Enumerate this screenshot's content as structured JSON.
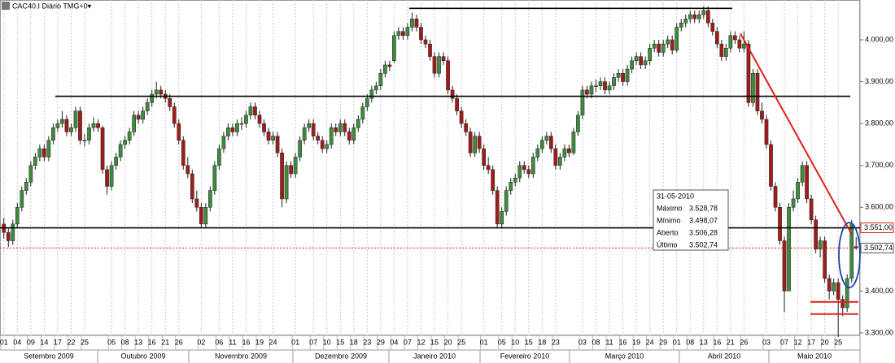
{
  "chart_data": {
    "type": "candlestick",
    "title": "CAC40.I Diário TMG+0▾",
    "up_color": "#3f8a3f",
    "down_color": "#a01c1c",
    "grid": true,
    "ylim": [
      3265,
      4095
    ],
    "yticks": [
      {
        "value": 3300,
        "label": "3.300,00"
      },
      {
        "value": 3400,
        "label": "3.400,00"
      },
      {
        "value": 3500,
        "label": "3.500,00"
      },
      {
        "value": 3600,
        "label": "3.600,00"
      },
      {
        "value": 3700,
        "label": "3.700,00"
      },
      {
        "value": 3800,
        "label": "3.800,00"
      },
      {
        "value": 3900,
        "label": "3.900,00"
      },
      {
        "value": 4000,
        "label": "4.000,00"
      }
    ],
    "months": [
      "Setembro 2009",
      "Outubro 2009",
      "Novembro 2009",
      "Dezembro 2009",
      "Janeiro 2010",
      "Fevereiro 2010",
      "Março 2010",
      "Abril 2010",
      "Maio 2010"
    ],
    "categories": [
      "01",
      null,
      null,
      "04",
      null,
      null,
      "09",
      null,
      null,
      "14",
      null,
      null,
      "17",
      null,
      null,
      "22",
      null,
      null,
      "25",
      null,
      null,
      null,
      null,
      null,
      "05",
      null,
      null,
      "08",
      null,
      null,
      "13",
      null,
      null,
      "16",
      null,
      null,
      "21",
      null,
      null,
      "26",
      null,
      null,
      null,
      null,
      "02",
      null,
      null,
      null,
      "06",
      null,
      null,
      "11",
      null,
      null,
      "16",
      null,
      null,
      "19",
      null,
      null,
      "24",
      null,
      null,
      null,
      null,
      "01",
      null,
      null,
      null,
      "07",
      null,
      null,
      "10",
      null,
      null,
      "15",
      null,
      null,
      "18",
      null,
      null,
      "23",
      null,
      null,
      "29",
      null,
      null,
      "04",
      null,
      null,
      "07",
      null,
      null,
      "12",
      null,
      null,
      "15",
      null,
      null,
      "20",
      null,
      null,
      "25",
      null,
      null,
      null,
      null,
      "01",
      null,
      null,
      null,
      "05",
      null,
      null,
      "10",
      null,
      null,
      "15",
      null,
      null,
      "18",
      null,
      null,
      "23",
      null,
      null,
      null,
      null,
      null,
      "03",
      null,
      null,
      "08",
      null,
      null,
      "11",
      null,
      null,
      "16",
      null,
      null,
      "19",
      null,
      null,
      "24",
      null,
      null,
      "29",
      null,
      null,
      "01",
      null,
      null,
      "08",
      null,
      null,
      "13",
      null,
      null,
      "16",
      null,
      null,
      "21",
      null,
      null,
      "26",
      null,
      null,
      null,
      null,
      "03",
      null,
      null,
      null,
      "07",
      null,
      null,
      "12",
      null,
      null,
      "17",
      null,
      null,
      "20",
      null,
      null,
      "25",
      null,
      null,
      null,
      null
    ],
    "ohlc": [
      [
        3560,
        3575,
        3525,
        3540
      ],
      [
        3540,
        3550,
        3505,
        3520
      ],
      [
        3520,
        3570,
        3510,
        3560
      ],
      [
        3560,
        3610,
        3550,
        3600
      ],
      [
        3600,
        3650,
        3590,
        3640
      ],
      [
        3640,
        3670,
        3630,
        3660
      ],
      [
        3660,
        3710,
        3650,
        3700
      ],
      [
        3700,
        3730,
        3690,
        3720
      ],
      [
        3720,
        3750,
        3710,
        3740
      ],
      [
        3740,
        3750,
        3710,
        3720
      ],
      [
        3720,
        3770,
        3710,
        3760
      ],
      [
        3760,
        3800,
        3750,
        3790
      ],
      [
        3790,
        3810,
        3780,
        3800
      ],
      [
        3800,
        3830,
        3790,
        3810
      ],
      [
        3810,
        3820,
        3770,
        3780
      ],
      [
        3780,
        3800,
        3770,
        3790
      ],
      [
        3790,
        3840,
        3780,
        3830
      ],
      [
        3830,
        3840,
        3750,
        3760
      ],
      [
        3760,
        3775,
        3745,
        3760
      ],
      [
        3760,
        3800,
        3750,
        3790
      ],
      [
        3790,
        3815,
        3780,
        3800
      ],
      [
        3800,
        3810,
        3780,
        3790
      ],
      [
        3790,
        3795,
        3680,
        3690
      ],
      [
        3690,
        3700,
        3630,
        3650
      ],
      [
        3650,
        3710,
        3640,
        3700
      ],
      [
        3700,
        3730,
        3690,
        3720
      ],
      [
        3720,
        3760,
        3710,
        3750
      ],
      [
        3750,
        3770,
        3740,
        3760
      ],
      [
        3760,
        3790,
        3750,
        3780
      ],
      [
        3780,
        3830,
        3770,
        3820
      ],
      [
        3820,
        3830,
        3800,
        3810
      ],
      [
        3810,
        3840,
        3800,
        3830
      ],
      [
        3830,
        3860,
        3820,
        3850
      ],
      [
        3850,
        3880,
        3840,
        3870
      ],
      [
        3870,
        3900,
        3860,
        3880
      ],
      [
        3880,
        3890,
        3860,
        3870
      ],
      [
        3870,
        3880,
        3850,
        3860
      ],
      [
        3860,
        3870,
        3830,
        3840
      ],
      [
        3840,
        3850,
        3790,
        3800
      ],
      [
        3800,
        3810,
        3750,
        3760
      ],
      [
        3760,
        3770,
        3690,
        3700
      ],
      [
        3700,
        3720,
        3670,
        3680
      ],
      [
        3680,
        3690,
        3610,
        3620
      ],
      [
        3620,
        3640,
        3590,
        3600
      ],
      [
        3600,
        3610,
        3550,
        3560
      ],
      [
        3560,
        3610,
        3550,
        3600
      ],
      [
        3600,
        3650,
        3590,
        3640
      ],
      [
        3640,
        3710,
        3630,
        3700
      ],
      [
        3700,
        3750,
        3690,
        3740
      ],
      [
        3740,
        3780,
        3730,
        3770
      ],
      [
        3770,
        3800,
        3760,
        3790
      ],
      [
        3790,
        3800,
        3770,
        3780
      ],
      [
        3780,
        3810,
        3770,
        3800
      ],
      [
        3800,
        3815,
        3785,
        3800
      ],
      [
        3800,
        3830,
        3790,
        3820
      ],
      [
        3820,
        3850,
        3810,
        3840
      ],
      [
        3840,
        3850,
        3810,
        3820
      ],
      [
        3820,
        3830,
        3790,
        3800
      ],
      [
        3800,
        3810,
        3770,
        3780
      ],
      [
        3780,
        3790,
        3750,
        3760
      ],
      [
        3760,
        3780,
        3750,
        3770
      ],
      [
        3770,
        3780,
        3720,
        3730
      ],
      [
        3730,
        3740,
        3600,
        3620
      ],
      [
        3620,
        3710,
        3610,
        3700
      ],
      [
        3700,
        3710,
        3670,
        3680
      ],
      [
        3680,
        3730,
        3670,
        3720
      ],
      [
        3720,
        3770,
        3710,
        3760
      ],
      [
        3760,
        3800,
        3750,
        3790
      ],
      [
        3790,
        3810,
        3780,
        3800
      ],
      [
        3800,
        3810,
        3760,
        3770
      ],
      [
        3770,
        3780,
        3750,
        3760
      ],
      [
        3760,
        3770,
        3730,
        3740
      ],
      [
        3740,
        3760,
        3730,
        3750
      ],
      [
        3750,
        3800,
        3740,
        3790
      ],
      [
        3790,
        3800,
        3770,
        3780
      ],
      [
        3780,
        3810,
        3770,
        3800
      ],
      [
        3800,
        3810,
        3770,
        3780
      ],
      [
        3780,
        3790,
        3750,
        3760
      ],
      [
        3760,
        3800,
        3750,
        3790
      ],
      [
        3790,
        3820,
        3780,
        3810
      ],
      [
        3810,
        3850,
        3800,
        3840
      ],
      [
        3840,
        3870,
        3830,
        3860
      ],
      [
        3860,
        3890,
        3850,
        3880
      ],
      [
        3880,
        3900,
        3870,
        3890
      ],
      [
        3890,
        3930,
        3880,
        3920
      ],
      [
        3920,
        3950,
        3910,
        3940
      ],
      [
        3940,
        3950,
        3925,
        3936
      ],
      [
        3950,
        4020,
        3945,
        4010
      ],
      [
        4010,
        4030,
        4000,
        4020
      ],
      [
        4020,
        4030,
        4000,
        4010
      ],
      [
        4010,
        4040,
        4000,
        4030
      ],
      [
        4030,
        4065,
        4020,
        4050
      ],
      [
        4050,
        4060,
        4020,
        4030
      ],
      [
        4030,
        4040,
        3990,
        4000
      ],
      [
        4000,
        4010,
        3980,
        3990
      ],
      [
        3990,
        4000,
        3950,
        3960
      ],
      [
        3960,
        3970,
        3910,
        3920
      ],
      [
        3920,
        3970,
        3910,
        3960
      ],
      [
        3960,
        3970,
        3940,
        3950
      ],
      [
        3950,
        3960,
        3870,
        3880
      ],
      [
        3880,
        3890,
        3850,
        3860
      ],
      [
        3860,
        3870,
        3820,
        3830
      ],
      [
        3830,
        3840,
        3790,
        3800
      ],
      [
        3800,
        3810,
        3770,
        3780
      ],
      [
        3780,
        3790,
        3720,
        3730
      ],
      [
        3730,
        3780,
        3720,
        3770
      ],
      [
        3770,
        3780,
        3730,
        3740
      ],
      [
        3740,
        3750,
        3690,
        3700
      ],
      [
        3700,
        3720,
        3680,
        3690
      ],
      [
        3690,
        3700,
        3630,
        3640
      ],
      [
        3640,
        3650,
        3550,
        3560
      ],
      [
        3560,
        3600,
        3550,
        3590
      ],
      [
        3590,
        3650,
        3580,
        3640
      ],
      [
        3640,
        3670,
        3630,
        3660
      ],
      [
        3660,
        3680,
        3650,
        3670
      ],
      [
        3670,
        3710,
        3660,
        3700
      ],
      [
        3700,
        3710,
        3680,
        3690
      ],
      [
        3690,
        3700,
        3670,
        3680
      ],
      [
        3680,
        3730,
        3670,
        3720
      ],
      [
        3720,
        3750,
        3710,
        3740
      ],
      [
        3740,
        3770,
        3730,
        3760
      ],
      [
        3760,
        3780,
        3750,
        3770
      ],
      [
        3770,
        3780,
        3730,
        3740
      ],
      [
        3740,
        3750,
        3690,
        3700
      ],
      [
        3700,
        3730,
        3690,
        3720
      ],
      [
        3720,
        3750,
        3710,
        3740
      ],
      [
        3740,
        3750,
        3720,
        3730
      ],
      [
        3730,
        3790,
        3725,
        3780
      ],
      [
        3780,
        3830,
        3770,
        3820
      ],
      [
        3820,
        3890,
        3810,
        3880
      ],
      [
        3880,
        3890,
        3860,
        3870
      ],
      [
        3870,
        3900,
        3860,
        3890
      ],
      [
        3890,
        3905,
        3875,
        3890
      ],
      [
        3890,
        3910,
        3880,
        3900
      ],
      [
        3900,
        3910,
        3870,
        3880
      ],
      [
        3880,
        3900,
        3870,
        3890
      ],
      [
        3890,
        3920,
        3880,
        3910
      ],
      [
        3910,
        3930,
        3900,
        3920
      ],
      [
        3920,
        3930,
        3890,
        3900
      ],
      [
        3900,
        3940,
        3890,
        3930
      ],
      [
        3930,
        3960,
        3920,
        3950
      ],
      [
        3950,
        3970,
        3940,
        3960
      ],
      [
        3960,
        3970,
        3930,
        3940
      ],
      [
        3940,
        3960,
        3930,
        3950
      ],
      [
        3950,
        3990,
        3940,
        3980
      ],
      [
        3980,
        4000,
        3970,
        3990
      ],
      [
        3990,
        4000,
        3960,
        3970
      ],
      [
        3970,
        4000,
        3960,
        3990
      ],
      [
        3990,
        4010,
        3980,
        4000
      ],
      [
        4000,
        4010,
        3965,
        3975
      ],
      [
        3975,
        4040,
        3970,
        4030
      ],
      [
        4030,
        4050,
        4020,
        4040
      ],
      [
        4040,
        4060,
        4030,
        4050
      ],
      [
        4050,
        4070,
        4040,
        4060
      ],
      [
        4060,
        4070,
        4040,
        4050
      ],
      [
        4050,
        4070,
        4040,
        4060
      ],
      [
        4060,
        4080,
        4050,
        4070
      ],
      [
        4070,
        4080,
        4030,
        4040
      ],
      [
        4040,
        4050,
        4010,
        4020
      ],
      [
        4020,
        4030,
        3980,
        3990
      ],
      [
        3990,
        4000,
        3950,
        3960
      ],
      [
        3960,
        3990,
        3950,
        3980
      ],
      [
        3980,
        4020,
        3970,
        4010
      ],
      [
        4010,
        4020,
        3990,
        4000
      ],
      [
        4000,
        4010,
        3970,
        3980
      ],
      [
        3980,
        4020,
        3970,
        3990
      ],
      [
        3990,
        4000,
        3840,
        3850
      ],
      [
        3850,
        3930,
        3840,
        3920
      ],
      [
        3920,
        3930,
        3820,
        3830
      ],
      [
        3830,
        3850,
        3800,
        3810
      ],
      [
        3810,
        3820,
        3740,
        3750
      ],
      [
        3750,
        3760,
        3640,
        3650
      ],
      [
        3650,
        3660,
        3590,
        3600
      ],
      [
        3600,
        3610,
        3510,
        3520
      ],
      [
        3520,
        3530,
        3350,
        3400
      ],
      [
        3400,
        3610,
        3400,
        3600
      ],
      [
        3600,
        3640,
        3590,
        3620
      ],
      [
        3620,
        3670,
        3610,
        3660
      ],
      [
        3660,
        3710,
        3650,
        3700
      ],
      [
        3700,
        3710,
        3610,
        3620
      ],
      [
        3620,
        3630,
        3560,
        3570
      ],
      [
        3570,
        3580,
        3490,
        3500
      ],
      [
        3500,
        3530,
        3480,
        3520
      ],
      [
        3520,
        3530,
        3420,
        3430
      ],
      [
        3430,
        3440,
        3380,
        3400
      ],
      [
        3400,
        3430,
        3390,
        3420
      ],
      [
        3420,
        3430,
        3290,
        3380
      ],
      [
        3380,
        3390,
        3340,
        3360
      ],
      [
        3360,
        3440,
        3350,
        3430
      ],
      [
        3430,
        3570,
        3420,
        3560
      ],
      [
        3506.28,
        3528.78,
        3498.07,
        3502.74
      ]
    ],
    "levels": [
      4075,
      3865,
      3551
    ],
    "trendline": [
      4015,
      3535
    ],
    "support_lines": [
      3374,
      3345
    ],
    "last_price_line": 3502.74,
    "price_labels": [
      {
        "value": 3551,
        "label": "3.551,00"
      },
      {
        "value": 3502.74,
        "label": "3.502,74"
      }
    ],
    "tooltip": {
      "title": "31-05-2010",
      "rows": [
        [
          "Máximo",
          "3.528,78"
        ],
        [
          "Mínimo",
          "3.498,07"
        ],
        [
          "Aberto",
          "3.506,28"
        ],
        [
          "Último",
          "3.502,74"
        ]
      ]
    }
  }
}
